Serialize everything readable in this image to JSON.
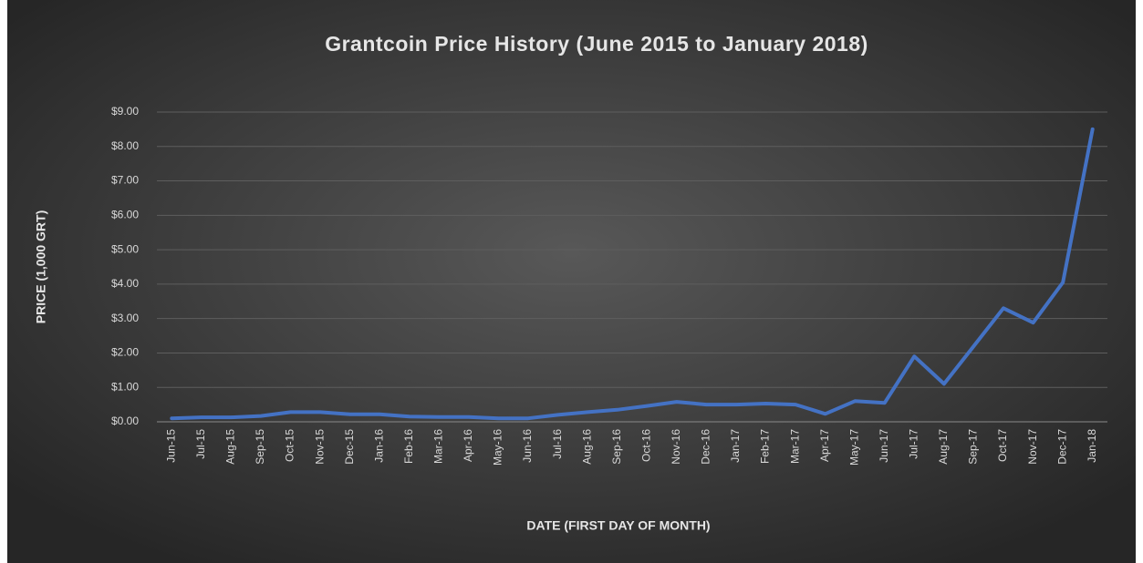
{
  "chart_data": {
    "type": "line",
    "title": "Grantcoin Price History (June 2015 to January 2018)",
    "y_label": "PRICE (1,000 GRT)",
    "x_label": "DATE (FIRST DAY OF MONTH)",
    "categories": [
      "Jun-15",
      "Jul-15",
      "Aug-15",
      "Sep-15",
      "Oct-15",
      "Nov-15",
      "Dec-15",
      "Jan-16",
      "Feb-16",
      "Mar-16",
      "Apr-16",
      "May-16",
      "Jun-16",
      "Jul-16",
      "Aug-16",
      "Sep-16",
      "Oct-16",
      "Nov-16",
      "Dec-16",
      "Jan-17",
      "Feb-17",
      "Mar-17",
      "Apr-17",
      "May-17",
      "Jun-17",
      "Jul-17",
      "Aug-17",
      "Sep-17",
      "Oct-17",
      "Nov-17",
      "Dec-17",
      "Jan-18"
    ],
    "values": [
      0.1,
      0.13,
      0.13,
      0.17,
      0.28,
      0.28,
      0.22,
      0.22,
      0.15,
      0.14,
      0.14,
      0.1,
      0.1,
      0.2,
      0.28,
      0.35,
      0.46,
      0.58,
      0.5,
      0.5,
      0.53,
      0.5,
      0.23,
      0.6,
      0.55,
      1.9,
      1.1,
      2.2,
      3.3,
      2.88,
      4.05,
      8.5
    ],
    "color": "#4472c4",
    "ylim": [
      0,
      9
    ],
    "yticks": [
      {
        "value": 0,
        "label": "$0.00"
      },
      {
        "value": 1,
        "label": "$1.00"
      },
      {
        "value": 2,
        "label": "$2.00"
      },
      {
        "value": 3,
        "label": "$3.00"
      },
      {
        "value": 4,
        "label": "$4.00"
      },
      {
        "value": 5,
        "label": "$5.00"
      },
      {
        "value": 6,
        "label": "$6.00"
      },
      {
        "value": 7,
        "label": "$7.00"
      },
      {
        "value": 8,
        "label": "$8.00"
      },
      {
        "value": 9,
        "label": "$9.00"
      }
    ],
    "grid": true
  }
}
